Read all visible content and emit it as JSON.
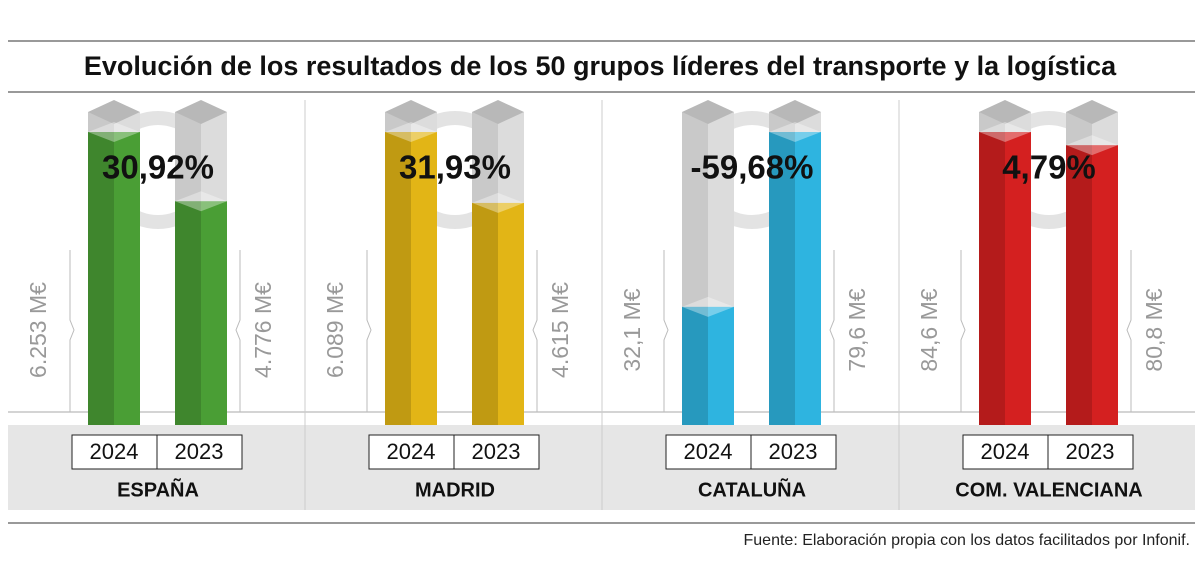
{
  "title": "Evolución de los resultados de los 50 grupos líderes del transporte y la logística",
  "source": "Fuente: Elaboración propia con los datos facilitados por Infonif.",
  "chart_data": [
    {
      "type": "bar",
      "title": "ESPAÑA",
      "categories": [
        "2024",
        "2023"
      ],
      "values": [
        6253,
        4776
      ],
      "value_labels": [
        "6.253 M€",
        "4.776 M€"
      ],
      "color": "#4a9e35",
      "change": 30.92,
      "change_label": "30,92%"
    },
    {
      "type": "bar",
      "title": "MADRID",
      "categories": [
        "2024",
        "2023"
      ],
      "values": [
        6089,
        4615
      ],
      "value_labels": [
        "6.089 M€",
        "4.615 M€"
      ],
      "color": "#e2b516",
      "change": 31.93,
      "change_label": "31,93%"
    },
    {
      "type": "bar",
      "title": "CATALUÑA",
      "categories": [
        "2024",
        "2023"
      ],
      "values": [
        32.1,
        79.6
      ],
      "value_labels": [
        "32,1 M€",
        "79,6 M€"
      ],
      "color": "#2eb4e0",
      "change": -59.68,
      "change_label": "-59,68%"
    },
    {
      "type": "bar",
      "title": "COM. VALENCIANA",
      "categories": [
        "2024",
        "2023"
      ],
      "values": [
        84.6,
        80.8
      ],
      "value_labels": [
        "84,6 M€",
        "80,8 M€"
      ],
      "color": "#d42020",
      "change": 4.79,
      "change_label": "4,79%"
    }
  ]
}
